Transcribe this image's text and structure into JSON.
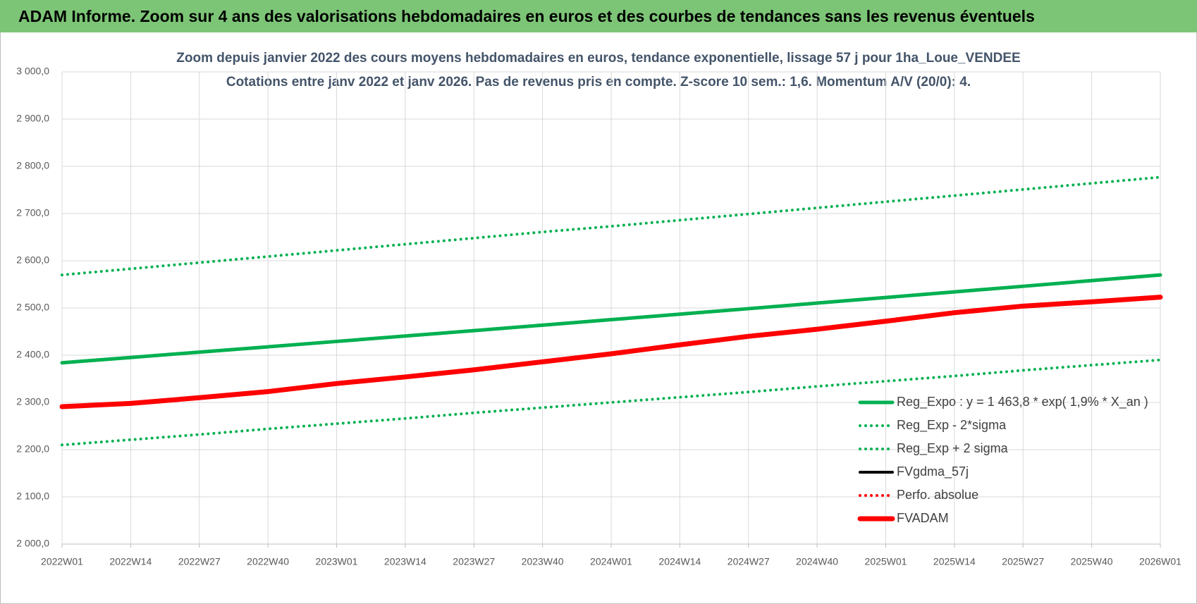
{
  "header": {
    "title": "ADAM Informe. Zoom sur 4 ans des valorisations hebdomadaires en euros et des courbes de tendances sans les revenus éventuels"
  },
  "chart_data": {
    "type": "line",
    "title": "Zoom depuis janvier 2022 des cours moyens hebdomadaires en euros, tendance exponentielle, lissage 57 j pour 1ha_Loue_VENDEE",
    "subtitle": "Cotations entre janv 2022 et janv 2026. Pas de revenus pris en compte. Z-score 10 sem.: 1,6. Momentum A/V (20/0): 4.",
    "categories": [
      "2022W01",
      "2022W14",
      "2022W27",
      "2022W40",
      "2023W01",
      "2023W14",
      "2023W27",
      "2023W40",
      "2024W01",
      "2024W14",
      "2024W27",
      "2024W40",
      "2025W01",
      "2025W14",
      "2025W27",
      "2025W40",
      "2026W01"
    ],
    "ylim": [
      2000,
      3000
    ],
    "yticks": [
      {
        "value": 2000,
        "label": "2 000,0"
      },
      {
        "value": 2100,
        "label": "2 100,0"
      },
      {
        "value": 2200,
        "label": "2 200,0"
      },
      {
        "value": 2300,
        "label": "2 300,0"
      },
      {
        "value": 2400,
        "label": "2 400,0"
      },
      {
        "value": 2500,
        "label": "2 500,0"
      },
      {
        "value": 2600,
        "label": "2 600,0"
      },
      {
        "value": 2700,
        "label": "2 700,0"
      },
      {
        "value": 2800,
        "label": "2 800,0"
      },
      {
        "value": 2900,
        "label": "2 900,0"
      },
      {
        "value": 3000,
        "label": "3 000,0"
      }
    ],
    "grid": true,
    "legend": "lower right",
    "series": [
      {
        "name": "Reg_Expo : y = 1 463,8 * exp( 1,9% *  X_an )",
        "color": "#00b050",
        "line_style": "solid",
        "values": [
          2384,
          2395.2,
          2406.5,
          2417.8,
          2429.2,
          2440.6,
          2452.1,
          2463.7,
          2475.3,
          2486.9,
          2498.6,
          2510.4,
          2522.2,
          2534.1,
          2546,
          2558,
          2570
        ]
      },
      {
        "name": "Reg_Exp - 2*sigma",
        "color": "#00b050",
        "line_style": "dotted",
        "values": [
          2210,
          2221,
          2232,
          2244,
          2255,
          2266,
          2278,
          2289,
          2300,
          2311,
          2322,
          2334,
          2345,
          2356,
          2368,
          2379,
          2390
        ]
      },
      {
        "name": "Reg_Exp + 2 sigma",
        "color": "#00b050",
        "line_style": "dotted",
        "values": [
          2570,
          2583,
          2596,
          2609,
          2622,
          2635,
          2648,
          2661,
          2673,
          2686,
          2699,
          2712,
          2725,
          2738,
          2751,
          2764,
          2777
        ]
      },
      {
        "name": "FVgdma_57j",
        "color": "#000000",
        "line_style": "solid",
        "values": [
          2291,
          2298,
          2310,
          2323,
          2340,
          2354,
          2369,
          2386,
          2403,
          2422,
          2440,
          2455,
          2472,
          2490,
          2504,
          2513,
          2523
        ]
      },
      {
        "name": "Perfo. absolue",
        "color": "#ff0000",
        "line_style": "dotted",
        "values": [
          2291,
          2298,
          2310,
          2323,
          2340,
          2354,
          2369,
          2386,
          2403,
          2422,
          2440,
          2455,
          2472,
          2490,
          2504,
          2513,
          2523
        ]
      },
      {
        "name": "FVADAM",
        "color": "#ff0000",
        "line_style": "solid",
        "values": [
          2291,
          2298,
          2310,
          2323,
          2340,
          2354,
          2369,
          2386,
          2403,
          2422,
          2440,
          2455,
          2472,
          2490,
          2504,
          2513,
          2523
        ]
      }
    ]
  }
}
